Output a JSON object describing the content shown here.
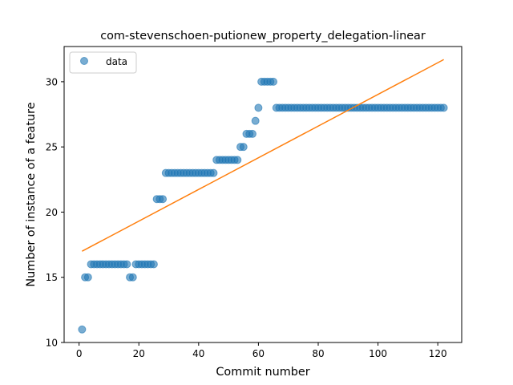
{
  "chart_data": {
    "type": "scatter",
    "title": "com-stevenschoen-putionew_property_delegation-linear",
    "xlabel": "Commit number",
    "ylabel": "Number of instance of a feature",
    "xlim": [
      -5,
      128
    ],
    "ylim": [
      10,
      32.7
    ],
    "xticks": [
      0,
      20,
      40,
      60,
      80,
      100,
      120
    ],
    "yticks": [
      10,
      15,
      20,
      25,
      30
    ],
    "legend": {
      "position": "top-left",
      "entries": [
        "data"
      ]
    },
    "colors": {
      "data": "#1f77b4",
      "fit": "#ff7f0e"
    },
    "series": [
      {
        "name": "data",
        "kind": "scatter",
        "x": [
          1,
          2,
          3,
          4,
          5,
          6,
          7,
          8,
          9,
          10,
          11,
          12,
          13,
          14,
          15,
          16,
          17,
          18,
          19,
          20,
          21,
          22,
          23,
          24,
          25,
          26,
          27,
          28,
          29,
          30,
          31,
          32,
          33,
          34,
          35,
          36,
          37,
          38,
          39,
          40,
          41,
          42,
          43,
          44,
          45,
          46,
          47,
          48,
          49,
          50,
          51,
          52,
          53,
          54,
          55,
          56,
          57,
          58,
          59,
          60,
          61,
          62,
          63,
          64,
          65,
          66,
          67,
          68,
          69,
          70,
          71,
          72,
          73,
          74,
          75,
          76,
          77,
          78,
          79,
          80,
          81,
          82,
          83,
          84,
          85,
          86,
          87,
          88,
          89,
          90,
          91,
          92,
          93,
          94,
          95,
          96,
          97,
          98,
          99,
          100,
          101,
          102,
          103,
          104,
          105,
          106,
          107,
          108,
          109,
          110,
          111,
          112,
          113,
          114,
          115,
          116,
          117,
          118,
          119,
          120,
          121,
          122
        ],
        "y": [
          11,
          15,
          15,
          16,
          16,
          16,
          16,
          16,
          16,
          16,
          16,
          16,
          16,
          16,
          16,
          16,
          15,
          15,
          16,
          16,
          16,
          16,
          16,
          16,
          16,
          21,
          21,
          21,
          23,
          23,
          23,
          23,
          23,
          23,
          23,
          23,
          23,
          23,
          23,
          23,
          23,
          23,
          23,
          23,
          23,
          24,
          24,
          24,
          24,
          24,
          24,
          24,
          24,
          25,
          25,
          26,
          26,
          26,
          27,
          28,
          30,
          30,
          30,
          30,
          30,
          28,
          28,
          28,
          28,
          28,
          28,
          28,
          28,
          28,
          28,
          28,
          28,
          28,
          28,
          28,
          28,
          28,
          28,
          28,
          28,
          28,
          28,
          28,
          28,
          28,
          28,
          28,
          28,
          28,
          28,
          28,
          28,
          28,
          28,
          28,
          28,
          28,
          28,
          28,
          28,
          28,
          28,
          28,
          28,
          28,
          28,
          28,
          28,
          28,
          28,
          28,
          28,
          28,
          28,
          28,
          28,
          28
        ]
      },
      {
        "kind": "line",
        "x": [
          1,
          122
        ],
        "y": [
          17.0,
          31.7
        ]
      }
    ]
  }
}
